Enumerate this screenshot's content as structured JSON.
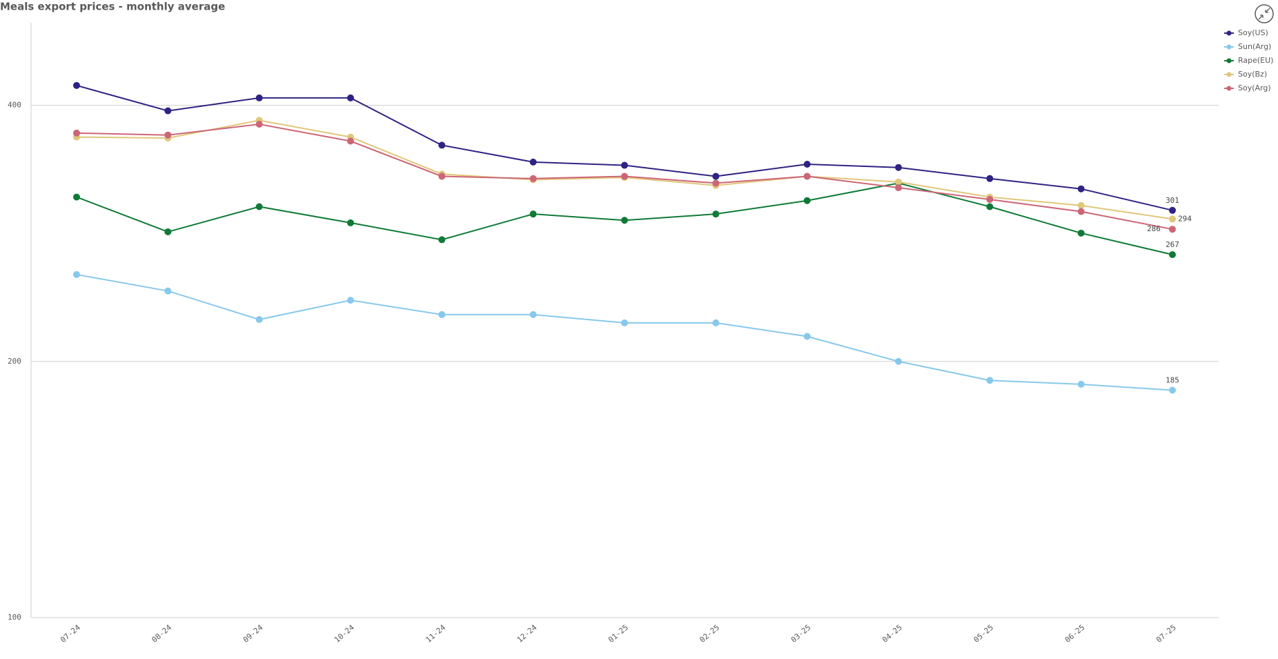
{
  "chart_data": {
    "type": "line",
    "title": "Meals export prices - monthly average",
    "categories": [
      "07-24",
      "08-24",
      "09-24",
      "10-24",
      "11-24",
      "12-24",
      "01-25",
      "02-25",
      "03-25",
      "04-25",
      "05-25",
      "06-25",
      "07-25"
    ],
    "series": [
      {
        "name": "Soy(US)",
        "color": "#2e2384",
        "values": [
          422,
          394,
          408,
          408,
          359,
          343,
          340,
          330,
          341,
          338,
          328,
          319,
          301
        ]
      },
      {
        "name": "Sun(Arg)",
        "color": "#87c8ec",
        "values": [
          253,
          242,
          224,
          236,
          227,
          227,
          222,
          222,
          214,
          200,
          190,
          188,
          185
        ]
      },
      {
        "name": "Rape(EU)",
        "color": "#0f7a36",
        "values": [
          312,
          284,
          304,
          291,
          278,
          298,
          293,
          298,
          309,
          324,
          304,
          283,
          267
        ]
      },
      {
        "name": "Soy(Bz)",
        "color": "#e0c77a",
        "values": [
          367,
          366,
          384,
          367,
          332,
          327,
          329,
          322,
          330,
          325,
          312,
          305,
          294
        ]
      },
      {
        "name": "Soy(Arg)",
        "color": "#cc6677",
        "values": [
          371,
          369,
          380,
          363,
          330,
          328,
          330,
          324,
          330,
          320,
          310,
          300,
          286
        ]
      }
    ],
    "ylim": [
      100,
      500
    ],
    "yticks": [
      100,
      200,
      400
    ],
    "log_y": true,
    "grid": true,
    "last_value_labels": true,
    "legend": "right"
  }
}
